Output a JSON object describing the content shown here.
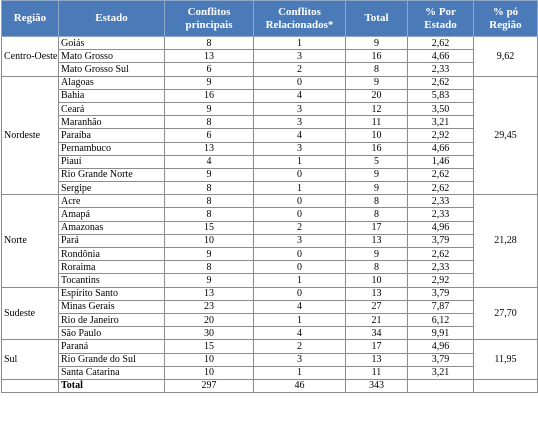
{
  "headers": {
    "regiao": "Região",
    "estado": "Estado",
    "conflitos_principais": "Conflitos principais",
    "conflitos_relacionados": "Conflitos Relacionados*",
    "total": "Total",
    "pct_estado": "% Por Estado",
    "pct_regiao": "% pó Região"
  },
  "regions": [
    {
      "name": "Centro-Oeste",
      "pct": "9,62",
      "rows": [
        {
          "estado": "Goiás",
          "cp": "8",
          "cr": "1",
          "total": "9",
          "pct": "2,62"
        },
        {
          "estado": "Mato Grosso",
          "cp": "13",
          "cr": "3",
          "total": "16",
          "pct": "4,66"
        },
        {
          "estado": "Mato Grosso Sul",
          "cp": "6",
          "cr": "2",
          "total": "8",
          "pct": "2,33"
        }
      ]
    },
    {
      "name": "Nordeste",
      "pct": "29,45",
      "rows": [
        {
          "estado": "Alagoas",
          "cp": "9",
          "cr": "0",
          "total": "9",
          "pct": "2,62"
        },
        {
          "estado": "Bahia",
          "cp": "16",
          "cr": "4",
          "total": "20",
          "pct": "5,83"
        },
        {
          "estado": "Ceará",
          "cp": "9",
          "cr": "3",
          "total": "12",
          "pct": "3,50"
        },
        {
          "estado": "Maranhão",
          "cp": "8",
          "cr": "3",
          "total": "11",
          "pct": "3,21"
        },
        {
          "estado": "Paraíba",
          "cp": "6",
          "cr": "4",
          "total": "10",
          "pct": "2,92"
        },
        {
          "estado": "Pernambuco",
          "cp": "13",
          "cr": "3",
          "total": "16",
          "pct": "4,66"
        },
        {
          "estado": "Piauí",
          "cp": "4",
          "cr": "1",
          "total": "5",
          "pct": "1,46"
        },
        {
          "estado": "Rio Grande Norte",
          "cp": "9",
          "cr": "0",
          "total": "9",
          "pct": "2,62"
        },
        {
          "estado": "Sergipe",
          "cp": "8",
          "cr": "1",
          "total": "9",
          "pct": "2,62"
        }
      ]
    },
    {
      "name": "Norte",
      "pct": "21,28",
      "rows": [
        {
          "estado": "Acre",
          "cp": "8",
          "cr": "0",
          "total": "8",
          "pct": "2,33"
        },
        {
          "estado": "Amapá",
          "cp": "8",
          "cr": "0",
          "total": "8",
          "pct": "2,33"
        },
        {
          "estado": "Amazonas",
          "cp": "15",
          "cr": "2",
          "total": "17",
          "pct": "4,96"
        },
        {
          "estado": "Pará",
          "cp": "10",
          "cr": "3",
          "total": "13",
          "pct": "3,79"
        },
        {
          "estado": "Rondônia",
          "cp": "9",
          "cr": "0",
          "total": "9",
          "pct": "2,62"
        },
        {
          "estado": "Roraima",
          "cp": "8",
          "cr": "0",
          "total": "8",
          "pct": "2,33"
        },
        {
          "estado": "Tocantins",
          "cp": "9",
          "cr": "1",
          "total": "10",
          "pct": "2,92"
        }
      ]
    },
    {
      "name": "Sudeste",
      "pct": "27,70",
      "rows": [
        {
          "estado": "Espírito Santo",
          "cp": "13",
          "cr": "0",
          "total": "13",
          "pct": "3,79"
        },
        {
          "estado": "Minas Gerais",
          "cp": "23",
          "cr": "4",
          "total": "27",
          "pct": "7,87"
        },
        {
          "estado": "Rio de Janeiro",
          "cp": "20",
          "cr": "1",
          "total": "21",
          "pct": "6,12"
        },
        {
          "estado": "São Paulo",
          "cp": "30",
          "cr": "4",
          "total": "34",
          "pct": "9,91"
        }
      ]
    },
    {
      "name": "Sul",
      "pct": "11,95",
      "rows": [
        {
          "estado": "Paraná",
          "cp": "15",
          "cr": "2",
          "total": "17",
          "pct": "4,96"
        },
        {
          "estado": "Rio Grande do Sul",
          "cp": "10",
          "cr": "3",
          "total": "13",
          "pct": "3,79"
        },
        {
          "estado": "Santa Catarina",
          "cp": "10",
          "cr": "1",
          "total": "11",
          "pct": "3,21"
        }
      ]
    }
  ],
  "total_row": {
    "label": "Total",
    "cp": "297",
    "cr": "46",
    "total": "343"
  }
}
